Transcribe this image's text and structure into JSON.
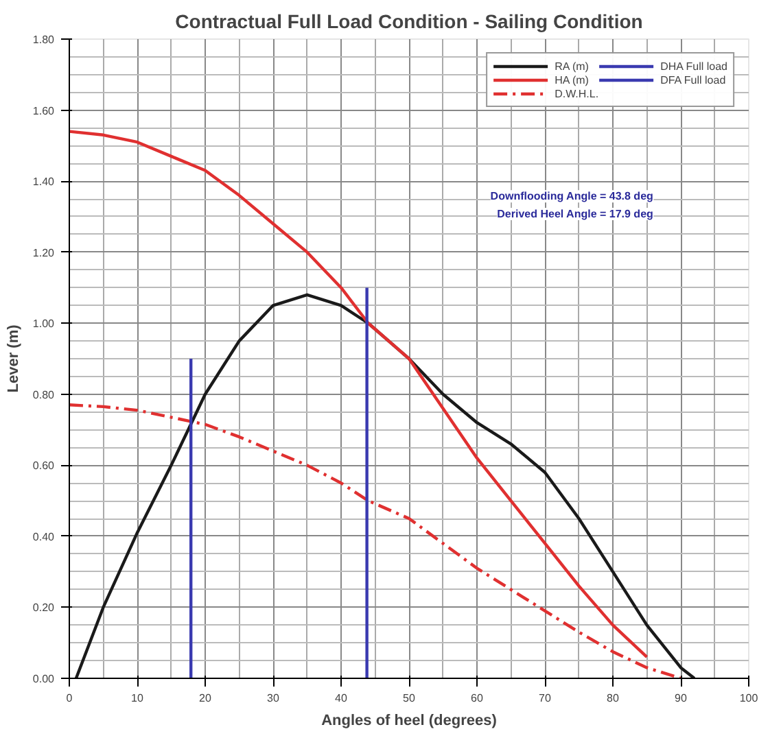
{
  "chart_data": {
    "type": "line",
    "title": "Contractual Full Load Condition - Sailing Condition",
    "xlabel": "Angles of heel (degrees)",
    "ylabel": "Lever (m)",
    "xlim": [
      0,
      100
    ],
    "xticks": [
      0,
      10,
      20,
      30,
      40,
      50,
      60,
      70,
      80,
      90,
      100
    ],
    "ylim": [
      0,
      1.8
    ],
    "yticks": [
      {
        "value": 0,
        "label": "0.00"
      },
      {
        "value": 0.2,
        "label": "0.20"
      },
      {
        "value": 0.4,
        "label": "0.40"
      },
      {
        "value": 0.6,
        "label": "0.60"
      },
      {
        "value": 0.8,
        "label": "0.80"
      },
      {
        "value": 1.0,
        "label": "1.00"
      },
      {
        "value": 1.2,
        "label": "1.20"
      },
      {
        "value": 1.4,
        "label": "1.40"
      },
      {
        "value": 1.6,
        "label": "1.60"
      },
      {
        "value": 1.8,
        "label": "1.80"
      }
    ],
    "grid": true,
    "legend": "top right",
    "marker": "none",
    "annotations": [
      "Downflooding Angle = 43.8 deg",
      "Derived Heel Angle = 17.9 deg"
    ],
    "series": [
      {
        "name": "RA (m)",
        "color": "#1a1a1a",
        "line_style": "solid",
        "x": [
          1,
          5,
          10,
          15,
          18,
          20,
          25,
          30,
          35,
          40,
          44,
          50,
          55,
          60,
          65,
          70,
          75,
          80,
          85,
          90,
          92
        ],
        "values": [
          0,
          0.2,
          0.41,
          0.6,
          0.72,
          0.8,
          0.95,
          1.05,
          1.08,
          1.05,
          1.0,
          0.9,
          0.8,
          0.72,
          0.66,
          0.58,
          0.45,
          0.3,
          0.15,
          0.03,
          0
        ]
      },
      {
        "name": "HA (m)",
        "color": "#e03030",
        "line_style": "solid",
        "x": [
          0,
          5,
          10,
          15,
          20,
          25,
          30,
          35,
          40,
          44,
          50,
          55,
          60,
          65,
          70,
          75,
          80,
          85
        ],
        "values": [
          1.54,
          1.53,
          1.51,
          1.47,
          1.43,
          1.36,
          1.28,
          1.2,
          1.1,
          1.0,
          0.9,
          0.76,
          0.62,
          0.5,
          0.38,
          0.26,
          0.15,
          0.06
        ]
      },
      {
        "name": "D.W.H.L.",
        "color": "#e03030",
        "line_style": "dashdot",
        "x": [
          0,
          5,
          10,
          15,
          20,
          25,
          30,
          35,
          40,
          44,
          50,
          55,
          60,
          65,
          70,
          75,
          80,
          85,
          90
        ],
        "values": [
          0.77,
          0.765,
          0.755,
          0.735,
          0.715,
          0.68,
          0.64,
          0.6,
          0.55,
          0.5,
          0.45,
          0.38,
          0.31,
          0.25,
          0.19,
          0.13,
          0.075,
          0.03,
          0
        ]
      },
      {
        "name": "DHA Full load",
        "color": "#3a3ab0",
        "line_style": "solid",
        "x": [
          17.9,
          17.9
        ],
        "values": [
          0,
          0.9
        ]
      },
      {
        "name": "DFA Full load",
        "color": "#3a3ab0",
        "line_style": "solid",
        "x": [
          43.8,
          43.8
        ],
        "values": [
          0,
          1.1
        ]
      }
    ]
  }
}
